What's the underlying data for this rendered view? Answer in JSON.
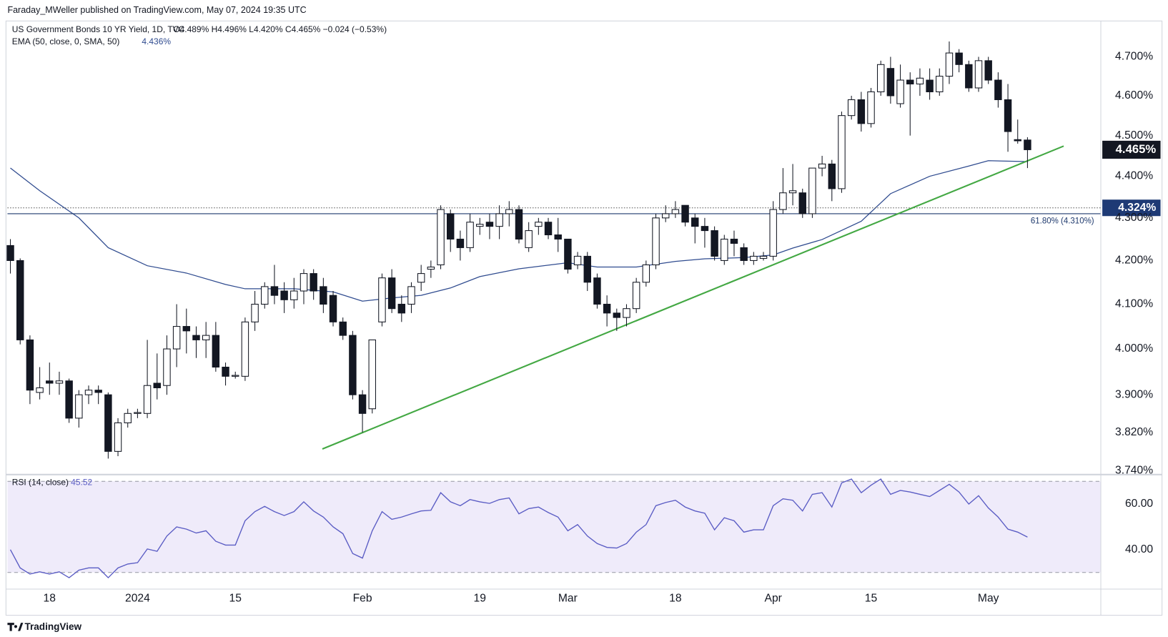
{
  "header": {
    "published": "Faraday_MWeller published on TradingView.com, May 07, 2024 19:35 UTC"
  },
  "chart_data": [
    {
      "type": "candlestick",
      "title": "US Government Bonds 10 YR Yield, 1D, TVC",
      "ohlc_label": "O4.489%  H4.496%  L4.420%  C4.465%  −0.024 (−0.53%)",
      "open": [
        4.235,
        4.2,
        4.02,
        3.905,
        3.93,
        3.925,
        3.93,
        3.85,
        3.9,
        3.91,
        3.9,
        3.78,
        3.84,
        3.86,
        3.86,
        3.925,
        3.92,
        4.0,
        4.05,
        4.03,
        4.02,
        4.03,
        3.96,
        3.94,
        3.94,
        4.06,
        4.1,
        4.14,
        4.13,
        4.11,
        4.13,
        4.17,
        4.14,
        4.12,
        4.06,
        4.03,
        3.9,
        3.87,
        4.06,
        4.16,
        4.1,
        4.1,
        4.15,
        4.18,
        4.19,
        4.31,
        4.25,
        4.23,
        4.28,
        4.29,
        4.28,
        4.31,
        4.32,
        4.23,
        4.28,
        4.29,
        4.26,
        4.25,
        4.19,
        4.21,
        4.16,
        4.1,
        4.08,
        4.07,
        4.09,
        4.15,
        4.19,
        4.3,
        4.31,
        4.33,
        4.3,
        4.28,
        4.27,
        4.2,
        4.25,
        4.23,
        4.2,
        4.205,
        4.21,
        4.32,
        4.36,
        4.36,
        4.31,
        4.42,
        4.43,
        4.37,
        4.55,
        4.59,
        4.53,
        4.61,
        4.67,
        4.58,
        4.64,
        4.63,
        4.64,
        4.61,
        4.65,
        4.71,
        4.68,
        4.62,
        4.69,
        4.64,
        4.59,
        4.49,
        4.489
      ],
      "high": [
        4.25,
        4.205,
        4.03,
        3.96,
        3.97,
        3.95,
        3.935,
        3.91,
        3.92,
        3.92,
        3.905,
        3.85,
        3.87,
        3.87,
        4.02,
        3.99,
        4.03,
        4.1,
        4.09,
        4.05,
        4.06,
        4.06,
        3.97,
        3.95,
        4.07,
        4.13,
        4.15,
        4.19,
        4.15,
        4.16,
        4.18,
        4.18,
        4.16,
        4.13,
        4.07,
        4.04,
        3.91,
        4.02,
        4.17,
        4.18,
        4.12,
        4.15,
        4.19,
        4.2,
        4.33,
        4.32,
        4.27,
        4.31,
        4.3,
        4.31,
        4.33,
        4.34,
        4.33,
        4.29,
        4.3,
        4.3,
        4.3,
        4.25,
        4.22,
        4.22,
        4.17,
        4.12,
        4.09,
        4.1,
        4.16,
        4.2,
        4.31,
        4.33,
        4.34,
        4.33,
        4.31,
        4.3,
        4.28,
        4.26,
        4.27,
        4.24,
        4.22,
        4.22,
        4.34,
        4.42,
        4.43,
        4.37,
        4.42,
        4.45,
        4.44,
        4.56,
        4.6,
        4.61,
        4.62,
        4.69,
        4.7,
        4.68,
        4.66,
        4.67,
        4.67,
        4.67,
        4.74,
        4.72,
        4.69,
        4.7,
        4.7,
        4.66,
        4.63,
        4.54,
        4.496
      ],
      "low": [
        4.17,
        4.01,
        3.88,
        3.89,
        3.9,
        3.9,
        3.84,
        3.83,
        3.88,
        3.88,
        3.765,
        3.77,
        3.83,
        3.85,
        3.85,
        3.89,
        3.9,
        3.96,
        3.99,
        3.98,
        3.98,
        3.95,
        3.92,
        3.935,
        3.93,
        4.04,
        4.09,
        4.1,
        4.08,
        4.09,
        4.1,
        4.11,
        4.08,
        4.05,
        4.02,
        3.89,
        3.82,
        3.86,
        4.05,
        4.08,
        4.06,
        4.08,
        4.13,
        4.16,
        4.18,
        4.22,
        4.2,
        4.22,
        4.26,
        4.25,
        4.25,
        4.28,
        4.24,
        4.22,
        4.26,
        4.25,
        4.22,
        4.17,
        4.18,
        4.13,
        4.09,
        4.05,
        4.04,
        4.05,
        4.08,
        4.14,
        4.18,
        4.29,
        4.3,
        4.28,
        4.24,
        4.23,
        4.2,
        4.19,
        4.21,
        4.19,
        4.19,
        4.2,
        4.2,
        4.31,
        4.33,
        4.3,
        4.3,
        4.4,
        4.34,
        4.36,
        4.54,
        4.51,
        4.52,
        4.6,
        4.58,
        4.57,
        4.5,
        4.6,
        4.59,
        4.6,
        4.63,
        4.66,
        4.61,
        4.61,
        4.63,
        4.57,
        4.46,
        4.48,
        4.42
      ],
      "close": [
        4.2,
        4.02,
        3.91,
        3.915,
        3.925,
        3.93,
        3.85,
        3.9,
        3.91,
        3.905,
        3.78,
        3.84,
        3.86,
        3.862,
        3.92,
        3.915,
        4.0,
        4.05,
        4.04,
        4.02,
        4.03,
        3.96,
        3.94,
        3.942,
        4.06,
        4.1,
        4.14,
        4.12,
        4.11,
        4.13,
        4.17,
        4.13,
        4.1,
        4.06,
        4.03,
        3.9,
        3.86,
        4.02,
        4.16,
        4.09,
        4.08,
        4.14,
        4.17,
        4.185,
        4.32,
        4.25,
        4.23,
        4.29,
        4.285,
        4.28,
        4.31,
        4.32,
        4.25,
        4.27,
        4.29,
        4.26,
        4.25,
        4.18,
        4.21,
        4.15,
        4.1,
        4.08,
        4.07,
        4.09,
        4.15,
        4.19,
        4.3,
        4.31,
        4.32,
        4.29,
        4.28,
        4.27,
        4.21,
        4.25,
        4.24,
        4.2,
        4.21,
        4.21,
        4.32,
        4.36,
        4.365,
        4.31,
        4.42,
        4.43,
        4.37,
        4.55,
        4.59,
        4.53,
        4.61,
        4.68,
        4.6,
        4.64,
        4.63,
        4.645,
        4.61,
        4.65,
        4.71,
        4.68,
        4.62,
        4.69,
        4.64,
        4.59,
        4.51,
        4.487,
        4.465
      ],
      "up_color": "#ffffff",
      "down_color": "#131722",
      "last_value_label": "4.465%",
      "xlim": [
        -0.3,
        111.5
      ],
      "xticks": [
        {
          "value": 4,
          "label": "18"
        },
        {
          "value": 13,
          "label": "2024"
        },
        {
          "value": 23,
          "label": "15"
        },
        {
          "value": 36,
          "label": "Feb"
        },
        {
          "value": 48,
          "label": "19"
        },
        {
          "value": 57,
          "label": "Mar"
        },
        {
          "value": 68,
          "label": "18"
        },
        {
          "value": 78,
          "label": "Apr"
        },
        {
          "value": 88,
          "label": "15"
        },
        {
          "value": 100,
          "label": "May"
        }
      ],
      "ylim": [
        3.735,
        4.794
      ],
      "log_scale": true,
      "grid": false,
      "yticks": [
        {
          "value": 3.74,
          "label": "3.740%"
        },
        {
          "value": 3.82,
          "label": "3.820%"
        },
        {
          "value": 3.9,
          "label": "3.900%"
        },
        {
          "value": 4.0,
          "label": "4.000%"
        },
        {
          "value": 4.1,
          "label": "4.100%"
        },
        {
          "value": 4.2,
          "label": "4.200%"
        },
        {
          "value": 4.3,
          "label": "4.300%"
        },
        {
          "value": 4.4,
          "label": "4.400%"
        },
        {
          "value": 4.5,
          "label": "4.500%"
        },
        {
          "value": 4.6,
          "label": "4.600%"
        },
        {
          "value": 4.7,
          "label": "4.700%"
        }
      ],
      "ema": {
        "name": "EMA (50, close, 0, SMA, 50)",
        "value_label": "4.436%",
        "color": "#2f4b8f",
        "x": [
          0,
          3,
          7,
          10,
          14,
          18,
          22,
          24,
          29,
          33,
          36,
          39,
          42,
          45,
          48,
          52,
          57,
          60,
          64,
          68,
          71,
          75,
          78,
          80,
          83,
          87,
          90,
          94,
          98,
          100,
          104
        ],
        "values": [
          4.42,
          4.365,
          4.3,
          4.23,
          4.188,
          4.171,
          4.145,
          4.135,
          4.135,
          4.128,
          4.107,
          4.114,
          4.12,
          4.137,
          4.163,
          4.181,
          4.195,
          4.185,
          4.185,
          4.198,
          4.204,
          4.207,
          4.213,
          4.229,
          4.249,
          4.292,
          4.358,
          4.4,
          4.425,
          4.438,
          4.436
        ]
      },
      "trendline": {
        "color": "#43a843",
        "x": [
          31.9,
          107.7
        ],
        "values": [
          3.785,
          4.474
        ]
      },
      "levels": [
        {
          "value": 4.31,
          "label": "61.80% (4.310%)",
          "style": "solid",
          "color": "#1f3a6e"
        },
        {
          "value": 4.324,
          "label": "4.324%",
          "style": "dotted",
          "color": "#1e3a75"
        }
      ]
    },
    {
      "type": "line",
      "name": "RSI (14, close)",
      "value_label": "45.52",
      "color": "#5a5cc4",
      "values": [
        40,
        32,
        29.3,
        30.3,
        29.3,
        30.3,
        27.7,
        31,
        32,
        32,
        27.7,
        32,
        33.7,
        34.3,
        40.3,
        39.3,
        46,
        50,
        49,
        47.3,
        48.3,
        43.7,
        42,
        42,
        52.7,
        56.7,
        59,
        56.7,
        55,
        56.7,
        61,
        57,
        54.3,
        50,
        47,
        38.3,
        36.3,
        48.3,
        56.7,
        53.3,
        54.3,
        55.7,
        57,
        57.3,
        65,
        61,
        59.3,
        62,
        61,
        60.3,
        62,
        62.7,
        55.7,
        58,
        58.7,
        56.3,
        54.3,
        48.3,
        51,
        46,
        42.7,
        41,
        40.7,
        42.7,
        47.7,
        51,
        59.3,
        60.7,
        61.7,
        58.7,
        57,
        56,
        48.7,
        54,
        52.7,
        47.7,
        48.7,
        48.7,
        59.3,
        62.3,
        61.7,
        57,
        64.3,
        65,
        58.7,
        69.3,
        71,
        65,
        68.3,
        71,
        64.3,
        66,
        65.3,
        64.3,
        63.3,
        66,
        68.7,
        65.3,
        60,
        63.7,
        58.3,
        54.3,
        49,
        47.7,
        45.52
      ],
      "ylim": [
        22.7,
        72.3
      ],
      "yticks": [
        {
          "value": 40,
          "label": "40.00"
        },
        {
          "value": 60,
          "label": "60.00"
        }
      ],
      "bands": [
        30,
        70
      ],
      "band_color": "#efebfa"
    }
  ],
  "footer": {
    "brand": "TradingView"
  }
}
